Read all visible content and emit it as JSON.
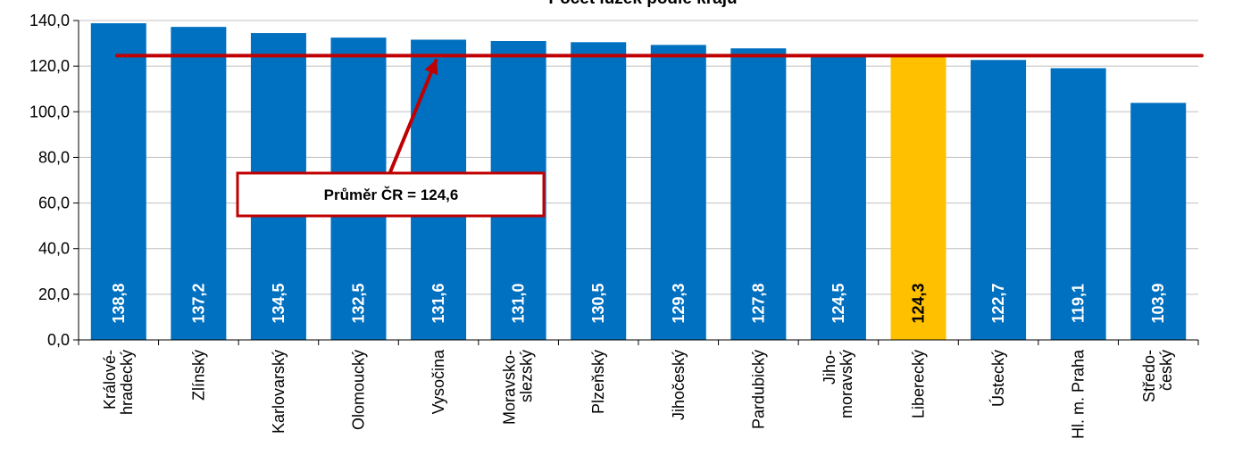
{
  "chart_data": {
    "type": "bar",
    "title": "Počet lůžek podle krajů",
    "categories": [
      [
        "Králové-",
        "hradecký"
      ],
      [
        "Zlínský"
      ],
      [
        "Karlovarský"
      ],
      [
        "Olomoucký"
      ],
      [
        "Vysočina"
      ],
      [
        "Moravsko-",
        "slezský"
      ],
      [
        "Plzeňský"
      ],
      [
        "Jihočeský"
      ],
      [
        "Pardubický"
      ],
      [
        "Jiho-",
        "moravský"
      ],
      [
        "Liberecký"
      ],
      [
        "Ústecký"
      ],
      [
        "Hl. m. Praha"
      ],
      [
        "Středo-",
        "český"
      ]
    ],
    "values": [
      138.8,
      137.2,
      134.5,
      132.5,
      131.6,
      131.0,
      130.5,
      129.3,
      127.8,
      124.5,
      124.3,
      122.7,
      119.1,
      103.9
    ],
    "value_labels": [
      "138,8",
      "137,2",
      "134,5",
      "132,5",
      "131,6",
      "131,0",
      "130,5",
      "129,3",
      "127,8",
      "124,5",
      "124,3",
      "122,7",
      "119,1",
      "103,9"
    ],
    "highlight_index": 10,
    "ylim": [
      0,
      140
    ],
    "yticks": [
      0,
      20,
      40,
      60,
      80,
      100,
      120,
      140
    ],
    "ytick_labels": [
      "0,0",
      "20,0",
      "40,0",
      "60,0",
      "80,0",
      "100,0",
      "120,0",
      "140,0"
    ],
    "grid": true,
    "average": {
      "value": 124.6,
      "label": "Průměr ČR =  124,6"
    },
    "colors": {
      "bar": "#0070c0",
      "highlight": "#ffc000",
      "average_line": "#c00000",
      "grid": "#c0c0c0",
      "label_on_bar": "#ffffff",
      "label_on_highlight": "#000000"
    }
  }
}
